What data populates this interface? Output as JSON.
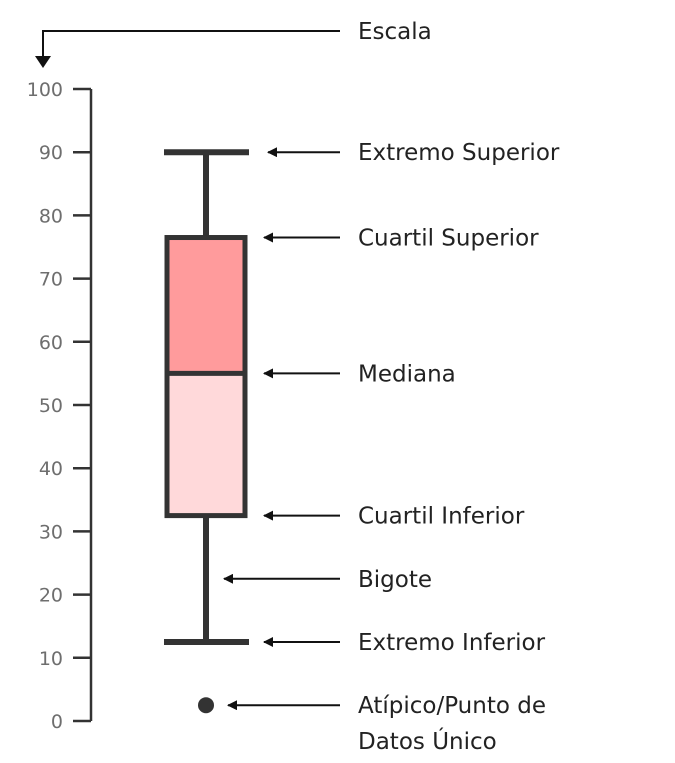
{
  "chart_data": {
    "type": "boxplot",
    "axis": {
      "ylim": [
        0,
        100
      ],
      "ticks": [
        0,
        10,
        20,
        30,
        40,
        50,
        60,
        70,
        80,
        90,
        100
      ],
      "tick_labels": [
        "0",
        "10",
        "20",
        "30",
        "40",
        "50",
        "60",
        "70",
        "80",
        "90",
        "100"
      ]
    },
    "box": {
      "upper_extreme": 90,
      "upper_quartile": 76.5,
      "median": 55,
      "lower_quartile": 32.5,
      "lower_extreme": 12.5,
      "outliers": [
        2.5
      ]
    },
    "colors": {
      "upper_box": "#ff9b9c",
      "lower_box": "#ffd9da",
      "lines": "#333333",
      "axis": "#333333",
      "tick_text": "#6e6e6e",
      "label_text": "#222222"
    },
    "annotations": {
      "scale": "Escala",
      "upper_extreme": "Extremo Superior",
      "upper_quartile": "Cuartil Superior",
      "median": "Mediana",
      "lower_quartile": "Cuartil Inferior",
      "whisker": "Bigote",
      "lower_extreme": "Extremo Inferior",
      "outlier_line1": "Atípico/Punto de",
      "outlier_line2": "Datos Único"
    }
  }
}
